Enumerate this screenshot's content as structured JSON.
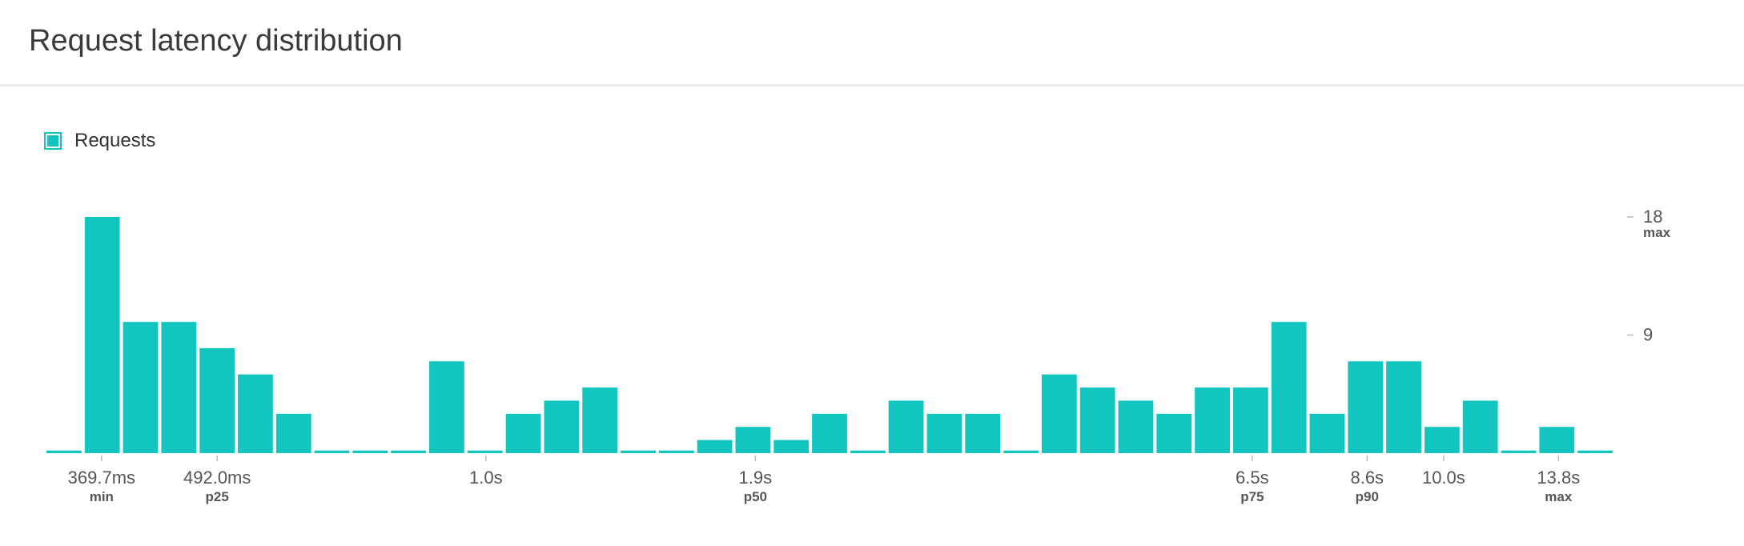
{
  "header": {
    "title": "Request latency distribution"
  },
  "legend": {
    "label": "Requests",
    "color": "#12c6bf"
  },
  "chart_data": {
    "type": "bar",
    "title": "Request latency distribution",
    "series": [
      {
        "name": "Requests",
        "values": [
          0.2,
          18,
          10,
          10,
          8,
          6,
          3,
          0.2,
          0.2,
          0.2,
          7,
          0.2,
          3,
          4,
          5,
          0.2,
          0.2,
          1,
          2,
          1,
          3,
          0.2,
          4,
          3,
          3,
          0.2,
          6,
          5,
          4,
          3,
          5,
          5,
          10,
          3,
          7,
          7,
          2,
          4,
          0.2,
          2,
          0.2
        ]
      }
    ],
    "ylim": [
      0,
      18
    ],
    "y_ticks": [
      {
        "value": 18,
        "label": "18",
        "sublabel": "max"
      },
      {
        "value": 9,
        "label": "9",
        "sublabel": ""
      }
    ],
    "x_ticks": [
      {
        "bin": 1.44,
        "label": "369.7ms",
        "sublabel": "min"
      },
      {
        "bin": 4.46,
        "label": "492.0ms",
        "sublabel": "p25"
      },
      {
        "bin": 11.48,
        "label": "1.0s",
        "sublabel": ""
      },
      {
        "bin": 18.52,
        "label": "1.9s",
        "sublabel": "p50"
      },
      {
        "bin": 31.5,
        "label": "6.5s",
        "sublabel": "p75"
      },
      {
        "bin": 34.5,
        "label": "8.6s",
        "sublabel": "p90"
      },
      {
        "bin": 36.5,
        "label": "10.0s",
        "sublabel": ""
      },
      {
        "bin": 39.5,
        "label": "13.8s",
        "sublabel": "max"
      }
    ],
    "grid": false,
    "legend_position": "top-left"
  }
}
